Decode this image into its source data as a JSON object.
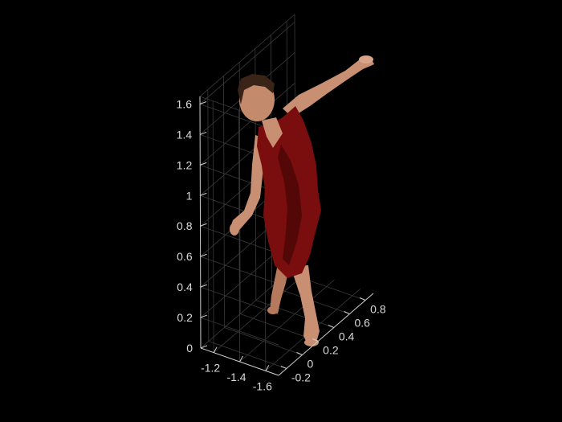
{
  "chart_data": {
    "type": "scatter",
    "dimensions": "3d",
    "title": "",
    "xlabel": "",
    "ylabel": "",
    "zlabel": "",
    "background": "#000000",
    "grid": true,
    "x_ticks": [
      "-1.2",
      "-1.4",
      "-1.6"
    ],
    "y_ticks": [
      "-0.2",
      "0",
      "0.2",
      "0.4",
      "0.6",
      "0.8"
    ],
    "z_ticks": [
      "0",
      "0.2",
      "0.4",
      "0.6",
      "0.8",
      "1",
      "1.2",
      "1.4",
      "1.6"
    ],
    "xlim": [
      -1.1,
      -1.7
    ],
    "ylim": [
      -0.3,
      0.9
    ],
    "zlim": [
      0,
      1.65
    ],
    "content": "colored point cloud of a dancing woman in a red dress",
    "colors": {
      "dress": "#7a0d0d",
      "dress_shadow": "#4a0606",
      "skin": "#c98f72",
      "hair": "#3a2418",
      "axis": "#d0d0d0",
      "grid": "#3a3a3a"
    }
  }
}
